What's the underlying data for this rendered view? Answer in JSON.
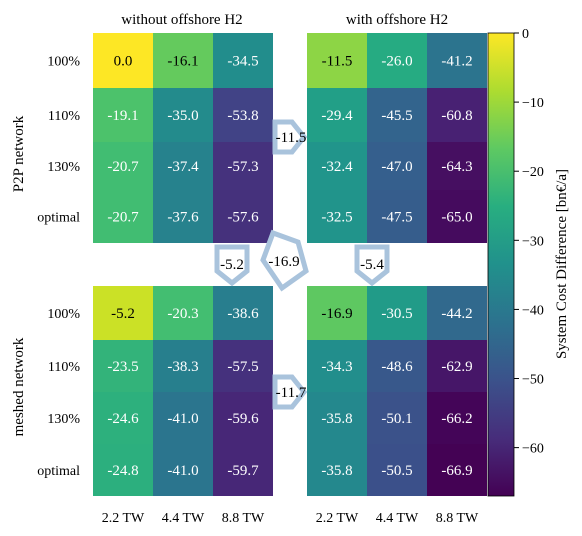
{
  "chart_data": {
    "type": "heatmap",
    "column_group_titles": [
      "without offshore H2",
      "with offshore H2"
    ],
    "row_group_titles": [
      "P2P network",
      "meshed network"
    ],
    "x_tick_labels": [
      "2.2 TW",
      "4.4 TW",
      "8.8 TW"
    ],
    "y_tick_labels": [
      "100%",
      "110%",
      "130%",
      "optimal"
    ],
    "panels": [
      {
        "row_group": "P2P network",
        "column_group": "without offshore H2",
        "values": [
          [
            0.0,
            -16.1,
            -34.5
          ],
          [
            -19.1,
            -35.0,
            -53.8
          ],
          [
            -20.7,
            -37.4,
            -57.3
          ],
          [
            -20.7,
            -37.6,
            -57.6
          ]
        ]
      },
      {
        "row_group": "P2P network",
        "column_group": "with offshore H2",
        "values": [
          [
            -11.5,
            -26.0,
            -41.2
          ],
          [
            -29.4,
            -45.5,
            -60.8
          ],
          [
            -32.4,
            -47.0,
            -64.3
          ],
          [
            -32.5,
            -47.5,
            -65.0
          ]
        ]
      },
      {
        "row_group": "meshed network",
        "column_group": "without offshore H2",
        "values": [
          [
            -5.2,
            -20.3,
            -38.6
          ],
          [
            -23.5,
            -38.3,
            -57.5
          ],
          [
            -24.6,
            -41.0,
            -59.6
          ],
          [
            -24.8,
            -41.0,
            -59.7
          ]
        ]
      },
      {
        "row_group": "meshed network",
        "column_group": "with offshore H2",
        "values": [
          [
            -16.9,
            -30.5,
            -44.2
          ],
          [
            -34.3,
            -48.6,
            -62.9
          ],
          [
            -35.8,
            -50.1,
            -66.2
          ],
          [
            -35.8,
            -50.5,
            -66.9
          ]
        ]
      }
    ],
    "arrow_labels": {
      "top_horizontal": "-11.5",
      "bottom_horizontal": "-11.7",
      "left_vertical": "-5.2",
      "right_vertical": "-5.4",
      "diagonal": "-16.9"
    },
    "colorbar": {
      "label": "System Cost Difference [bn€/a]",
      "colormap": "viridis",
      "range": [
        -67,
        0
      ],
      "ticks": [
        0,
        -10,
        -20,
        -30,
        -40,
        -50,
        -60
      ]
    },
    "arrow_color": "#a9c3dc"
  }
}
